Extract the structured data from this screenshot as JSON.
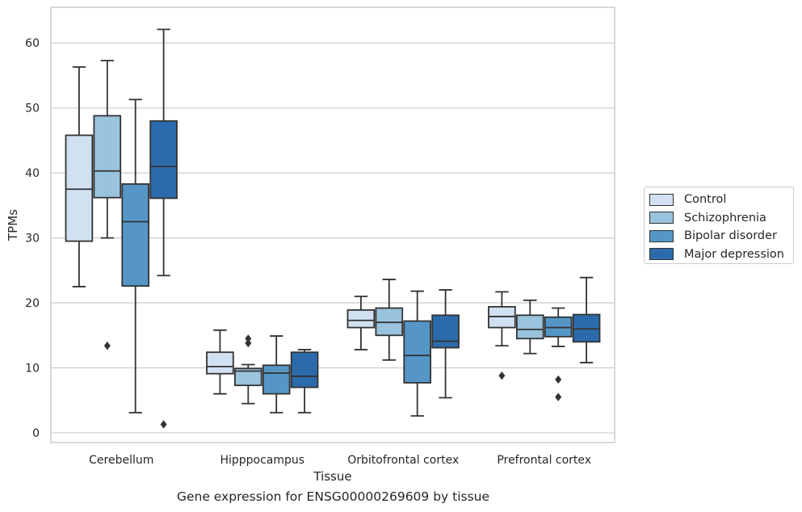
{
  "chart_data": {
    "type": "boxplot",
    "title": "",
    "caption": "Gene expression for ENSG00000269609 by tissue",
    "xlabel": "Tissue",
    "ylabel": "TPMs",
    "ylim": [
      -1.5,
      65.5
    ],
    "yticks": [
      0,
      10,
      20,
      30,
      40,
      50,
      60
    ],
    "grid": "horizontal",
    "legend_placement": "outside-right",
    "categories": [
      "Cerebellum",
      "Hipppocampus",
      "Orbitofrontal cortex",
      "Prefrontal cortex"
    ],
    "series": [
      {
        "name": "Control",
        "color": "#d1e1f1",
        "boxes": [
          {
            "whislo": 22.5,
            "q1": 29.5,
            "med": 37.5,
            "q3": 45.8,
            "whishi": 56.3,
            "fliers": []
          },
          {
            "whislo": 6.0,
            "q1": 9.1,
            "med": 10.2,
            "q3": 12.4,
            "whishi": 15.8,
            "fliers": []
          },
          {
            "whislo": 12.8,
            "q1": 16.2,
            "med": 17.3,
            "q3": 18.9,
            "whishi": 21.0,
            "fliers": []
          },
          {
            "whislo": 13.4,
            "q1": 16.2,
            "med": 17.9,
            "q3": 19.4,
            "whishi": 21.7,
            "fliers": [
              8.8
            ]
          }
        ]
      },
      {
        "name": "Schizophrenia",
        "color": "#9ac3dd",
        "boxes": [
          {
            "whislo": 30.0,
            "q1": 36.2,
            "med": 40.3,
            "q3": 48.8,
            "whishi": 57.3,
            "fliers": [
              13.4
            ]
          },
          {
            "whislo": 4.5,
            "q1": 7.3,
            "med": 9.5,
            "q3": 9.9,
            "whishi": 10.5,
            "fliers": [
              13.8,
              14.5
            ]
          },
          {
            "whislo": 11.2,
            "q1": 15.0,
            "med": 17.0,
            "q3": 19.2,
            "whishi": 23.6,
            "fliers": []
          },
          {
            "whislo": 12.2,
            "q1": 14.5,
            "med": 15.9,
            "q3": 18.1,
            "whishi": 20.4,
            "fliers": []
          }
        ]
      },
      {
        "name": "Bipolar disorder",
        "color": "#5596c7",
        "boxes": [
          {
            "whislo": 3.1,
            "q1": 22.6,
            "med": 32.5,
            "q3": 38.3,
            "whishi": 51.3,
            "fliers": []
          },
          {
            "whislo": 3.1,
            "q1": 6.0,
            "med": 9.2,
            "q3": 10.4,
            "whishi": 14.9,
            "fliers": []
          },
          {
            "whislo": 2.6,
            "q1": 7.7,
            "med": 11.9,
            "q3": 17.2,
            "whishi": 21.8,
            "fliers": []
          },
          {
            "whislo": 13.3,
            "q1": 14.8,
            "med": 16.2,
            "q3": 17.8,
            "whishi": 19.2,
            "fliers": [
              8.2,
              5.5
            ]
          }
        ]
      },
      {
        "name": "Major depression",
        "color": "#2c6bab",
        "boxes": [
          {
            "whislo": 24.2,
            "q1": 36.1,
            "med": 41.0,
            "q3": 48.0,
            "whishi": 62.1,
            "fliers": [
              1.3
            ]
          },
          {
            "whislo": 3.1,
            "q1": 7.0,
            "med": 8.7,
            "q3": 12.4,
            "whishi": 12.8,
            "fliers": []
          },
          {
            "whislo": 5.4,
            "q1": 13.1,
            "med": 14.1,
            "q3": 18.1,
            "whishi": 22.0,
            "fliers": []
          },
          {
            "whislo": 10.8,
            "q1": 14.0,
            "med": 16.0,
            "q3": 18.2,
            "whishi": 23.9,
            "fliers": []
          }
        ]
      }
    ]
  }
}
